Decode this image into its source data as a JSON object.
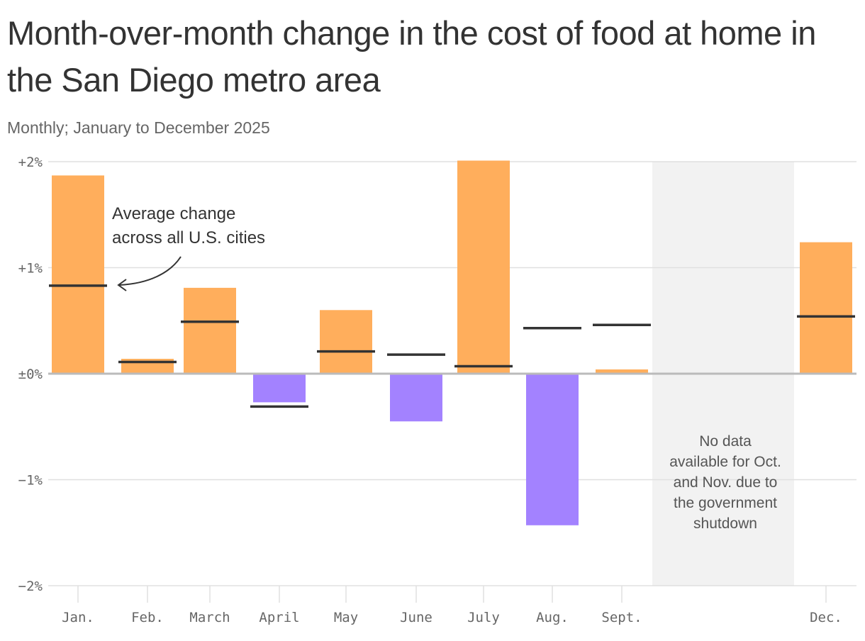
{
  "title": "Month-over-month change in the cost of food at home in the San Diego metro area",
  "subtitle": "Monthly; January to December 2025",
  "chart_data": {
    "type": "bar",
    "categories": [
      "Jan.",
      "Feb.",
      "March",
      "April",
      "May",
      "June",
      "July",
      "Aug.",
      "Sept.",
      "Oct.",
      "Nov.",
      "Dec."
    ],
    "x_tick_labels": [
      "Jan.",
      "Feb.",
      "March",
      "April",
      "May",
      "June",
      "July",
      "Aug.",
      "Sept.",
      "",
      "",
      "Dec."
    ],
    "series": [
      {
        "values": [
          1.87,
          0.14,
          0.81,
          -0.27,
          0.6,
          -0.45,
          2.01,
          -1.43,
          0.04,
          null,
          null,
          1.24
        ]
      },
      {
        "name": "Average change across all U.S. cities",
        "values": [
          0.83,
          0.11,
          0.49,
          -0.31,
          0.21,
          0.18,
          0.07,
          0.43,
          0.46,
          null,
          null,
          0.54
        ]
      }
    ],
    "ylim": [
      -2,
      2
    ],
    "y_ticks": [
      {
        "value": 2,
        "label": "+2%"
      },
      {
        "value": 1,
        "label": "+1%"
      },
      {
        "value": 0,
        "label": "±0%"
      },
      {
        "value": -1,
        "label": "−1%"
      },
      {
        "value": -2,
        "label": "−2%"
      }
    ],
    "colors": {
      "positive": "#FFAE5C",
      "negative": "#A382FF",
      "average_line": "#333333",
      "no_data_band": "#F2F2F2",
      "grid": "#E0E0E0",
      "zero_line": "#BBBBBB"
    },
    "annotations": {
      "average_label": [
        "Average change",
        "across all U.S. cities"
      ],
      "no_data_note": [
        "No data",
        "available for Oct.",
        "and Nov. due to",
        "the government",
        "shutdown"
      ]
    },
    "grid": true
  }
}
